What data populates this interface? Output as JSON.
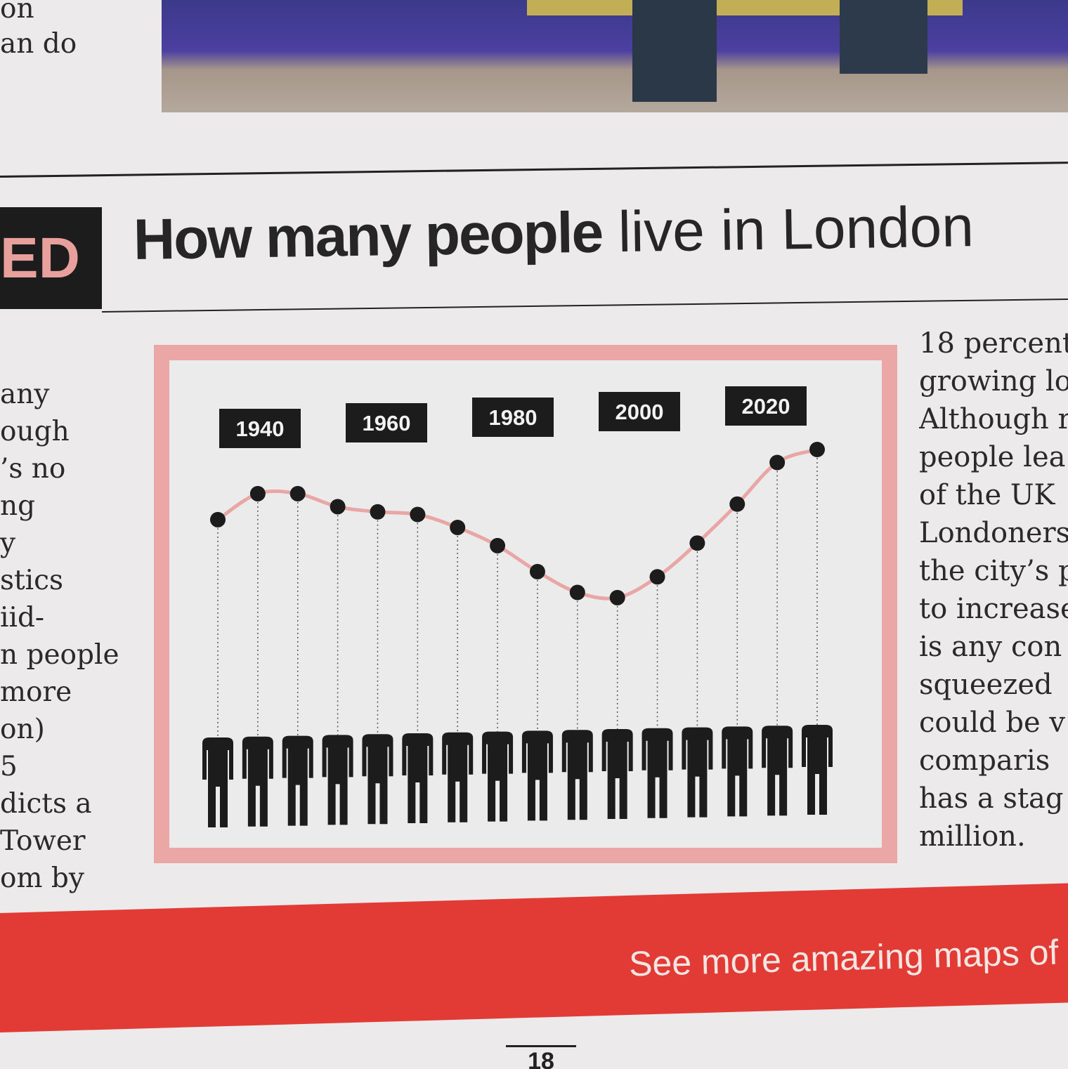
{
  "headline": {
    "section_tag": "ED",
    "bold": "How many people",
    "light": "live in London"
  },
  "left_column_lines": [
    "any",
    "ough",
    "’s no",
    "ng",
    "y",
    "stics",
    "iid-",
    "n people",
    "more",
    "on)",
    "5",
    "dicts a",
    "Tower",
    "om by"
  ],
  "right_column_lines": [
    "18 percent",
    "growing lo",
    "Although r",
    "people lea",
    "of the UK",
    "Londoners",
    "the city’s p",
    "to increase",
    "is any con",
    "squeezed",
    "could be v",
    "comparis",
    "has a stag",
    "million."
  ],
  "top_fragment_lines": [
    "on",
    "an do"
  ],
  "chart_data": {
    "type": "line",
    "title": "",
    "xlabel": "",
    "ylabel": "",
    "year_labels": [
      "1940",
      "1960",
      "1980",
      "2000",
      "2020"
    ],
    "point_count": 16,
    "relative_level_0_to_1": [
      0.73,
      0.83,
      0.83,
      0.78,
      0.76,
      0.75,
      0.7,
      0.63,
      0.53,
      0.45,
      0.43,
      0.51,
      0.64,
      0.79,
      0.95,
      1.0
    ],
    "line_color": "#e8a6a4",
    "frame_color": "#eaa7a5",
    "marker_color": "#1c1c1c"
  },
  "banner": {
    "text": "See more amazing maps of"
  },
  "page_number": "18"
}
